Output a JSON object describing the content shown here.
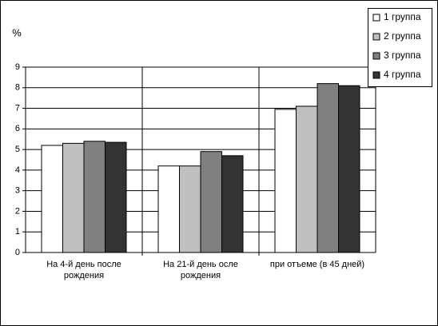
{
  "chart_data": {
    "type": "bar",
    "y_label": "%",
    "categories": [
      "На 4-й день после рождения",
      "На 21-й день осле рождения",
      "при отъеме (в 45 дней)"
    ],
    "series": [
      {
        "name": "1 группа",
        "color": "#ffffff",
        "values": [
          5.2,
          4.2,
          6.95
        ]
      },
      {
        "name": "2 группа",
        "color": "#c0c0c0",
        "values": [
          5.3,
          4.2,
          7.1
        ]
      },
      {
        "name": "3 группа",
        "color": "#808080",
        "values": [
          5.4,
          4.9,
          8.2
        ]
      },
      {
        "name": "4 группа",
        "color": "#333333",
        "values": [
          5.35,
          4.7,
          8.1
        ]
      }
    ],
    "ylim": [
      0,
      9
    ],
    "yticks": [
      0,
      1,
      2,
      3,
      4,
      5,
      6,
      7,
      8,
      9
    ],
    "grid": true,
    "legend": "top-right"
  }
}
